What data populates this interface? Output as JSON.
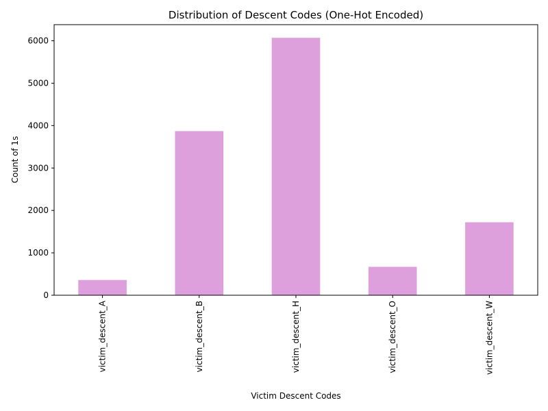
{
  "chart_data": {
    "type": "bar",
    "title": "Distribution of Descent Codes (One-Hot Encoded)",
    "xlabel": "Victim Descent Codes",
    "ylabel": "Count of 1s",
    "categories": [
      "victim_descent_A",
      "victim_descent_B",
      "victim_descent_H",
      "victim_descent_O",
      "victim_descent_W"
    ],
    "values": [
      360,
      3870,
      6070,
      670,
      1720
    ],
    "ylim": [
      0,
      6380
    ],
    "yticks": [
      0,
      1000,
      2000,
      3000,
      4000,
      5000,
      6000
    ],
    "bar_color": "#dda0dd",
    "grid": false,
    "legend": "none"
  }
}
